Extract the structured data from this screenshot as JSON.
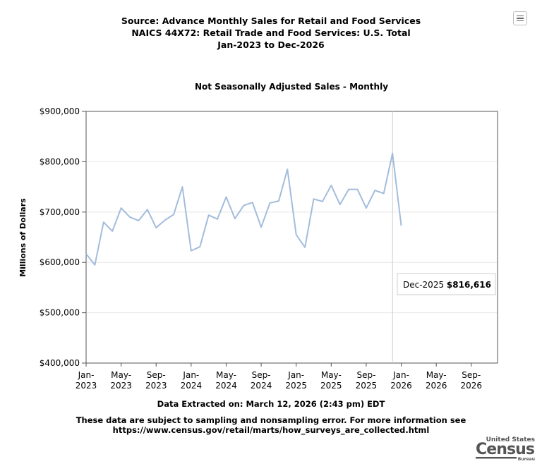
{
  "title_lines": [
    "Source: Advance Monthly Sales for Retail and Food Services",
    "NAICS 44X72: Retail Trade and Food Services: U.S. Total",
    "Jan-2023 to Dec-2026"
  ],
  "footer": {
    "extracted": "Data Extracted on: March 12, 2026 (2:43 pm) EDT",
    "note_line1": "These data are subject to sampling and nonsampling error. For more information see",
    "note_line2": "https://www.census.gov/retail/marts/how_surveys_are_collected.html"
  },
  "logo": {
    "top": "United States",
    "main": "Census",
    "bottom": "Bureau"
  },
  "tooltip": {
    "label": "Dec-2025",
    "value": "$816,616"
  },
  "chart_data": {
    "type": "line",
    "title": "Not Seasonally Adjusted Sales - Monthly",
    "ylabel": "Millions of Dollars",
    "xlabel": "",
    "ylim": [
      400000,
      900000
    ],
    "yticks": [
      400000,
      500000,
      600000,
      700000,
      800000,
      900000
    ],
    "ytick_labels": [
      "$400,000",
      "$500,000",
      "$600,000",
      "$700,000",
      "$800,000",
      "$900,000"
    ],
    "xtick_labels": [
      [
        "Jan-",
        "2023"
      ],
      [
        "May-",
        "2023"
      ],
      [
        "Sep-",
        "2023"
      ],
      [
        "Jan-",
        "2024"
      ],
      [
        "May-",
        "2024"
      ],
      [
        "Sep-",
        "2024"
      ],
      [
        "Jan-",
        "2025"
      ],
      [
        "May-",
        "2025"
      ],
      [
        "Sep-",
        "2025"
      ],
      [
        "Jan-",
        "2026"
      ],
      [
        "May-",
        "2026"
      ],
      [
        "Sep-",
        "2026"
      ]
    ],
    "x_months_total": 48,
    "series_color": "#a3bcdc",
    "highlight_index": 35,
    "values": [
      617000,
      595000,
      680000,
      662000,
      708000,
      690000,
      683000,
      705000,
      669000,
      684000,
      695000,
      750000,
      623000,
      631000,
      694000,
      686000,
      730000,
      687000,
      713000,
      719000,
      670000,
      718000,
      722000,
      785000,
      655000,
      630000,
      726000,
      721000,
      753000,
      715000,
      745000,
      745000,
      708000,
      743000,
      737000,
      816616,
      673000
    ]
  }
}
